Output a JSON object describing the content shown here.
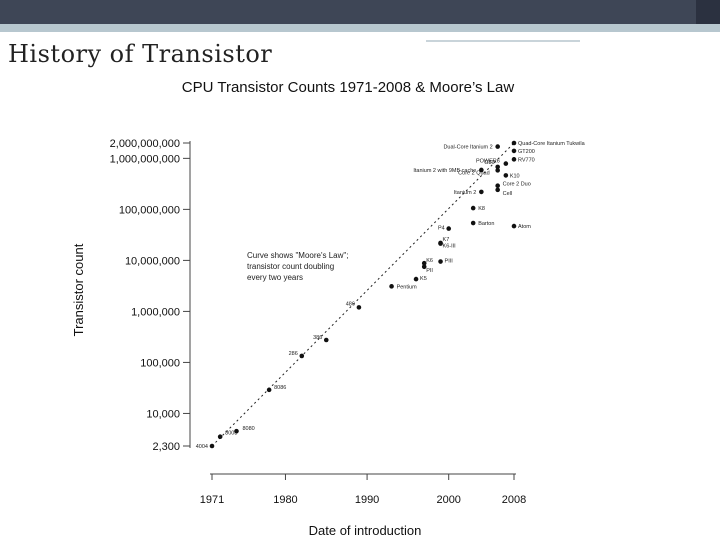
{
  "slide": {
    "title": "History of Transistor"
  },
  "colors": {
    "header_bar": "#3e4656",
    "header_accent": "#b7c7cf",
    "points": "#111111"
  },
  "chart_data": {
    "type": "scatter",
    "title": "CPU Transistor Counts 1971-2008 & Moore’s Law",
    "xlabel": "Date of introduction",
    "ylabel": "Transistor count",
    "y_scale": "log",
    "xlim": [
      1971,
      2008
    ],
    "ylim": [
      2300,
      2000000000
    ],
    "x_ticks": [
      "1971",
      "1980",
      "1990",
      "2000",
      "2008"
    ],
    "y_ticks": [
      {
        "label": "2,000,000,000",
        "value": 2000000000
      },
      {
        "label": "1,000,000,000",
        "value": 1000000000
      },
      {
        "label": "100,000,000",
        "value": 100000000
      },
      {
        "label": "10,000,000",
        "value": 10000000
      },
      {
        "label": "1,000,000",
        "value": 1000000
      },
      {
        "label": "100,000",
        "value": 100000
      },
      {
        "label": "10,000",
        "value": 10000
      },
      {
        "label": "2,300",
        "value": 2300
      }
    ],
    "annotation": [
      "Curve shows \"Moore's Law\";",
      "transistor count doubling",
      "every two years"
    ],
    "trend": {
      "x": [
        1971,
        2008
      ],
      "y": [
        2300,
        2000000000
      ]
    },
    "points": [
      {
        "label": "4004",
        "x": 1971,
        "y": 2300
      },
      {
        "label": "8008",
        "x": 1972,
        "y": 3500
      },
      {
        "label": "8080",
        "x": 1974,
        "y": 4500
      },
      {
        "label": "8086",
        "x": 1978,
        "y": 29000
      },
      {
        "label": "286",
        "x": 1982,
        "y": 134000
      },
      {
        "label": "386",
        "x": 1985,
        "y": 275000
      },
      {
        "label": "486",
        "x": 1989,
        "y": 1200000
      },
      {
        "label": "Pentium",
        "x": 1993,
        "y": 3100000
      },
      {
        "label": "K5",
        "x": 1996,
        "y": 4300000
      },
      {
        "label": "PII",
        "x": 1997,
        "y": 7500000
      },
      {
        "label": "K6",
        "x": 1997,
        "y": 8800000
      },
      {
        "label": "PIII",
        "x": 1999,
        "y": 9500000
      },
      {
        "label": "K7",
        "x": 1999,
        "y": 22000000
      },
      {
        "label": "K6-III",
        "x": 1999,
        "y": 21300000
      },
      {
        "label": "P4",
        "x": 2000,
        "y": 42000000
      },
      {
        "label": "Barton",
        "x": 2003,
        "y": 54000000
      },
      {
        "label": "K8",
        "x": 2003,
        "y": 105900000
      },
      {
        "label": "Itanium 2",
        "x": 2004,
        "y": 220000000
      },
      {
        "label": "Core 2 Quad",
        "x": 2006,
        "y": 582000000
      },
      {
        "label": "Itanium 2 with 9MB cache",
        "x": 2004,
        "y": 592000000
      },
      {
        "label": "Cell",
        "x": 2006,
        "y": 241000000
      },
      {
        "label": "Core 2 Duo",
        "x": 2006,
        "y": 291000000
      },
      {
        "label": "K10",
        "x": 2007,
        "y": 463000000
      },
      {
        "label": "G80",
        "x": 2006,
        "y": 681000000
      },
      {
        "label": "POWER6",
        "x": 2007,
        "y": 789000000
      },
      {
        "label": "Dual-Core Itanium 2",
        "x": 2006,
        "y": 1700000000
      },
      {
        "label": "RV770",
        "x": 2008,
        "y": 956000000
      },
      {
        "label": "GT200",
        "x": 2008,
        "y": 1400000000
      },
      {
        "label": "Quad-Core Itanium Tukwila",
        "x": 2008,
        "y": 2000000000
      },
      {
        "label": "Atom",
        "x": 2008,
        "y": 47000000
      }
    ]
  }
}
